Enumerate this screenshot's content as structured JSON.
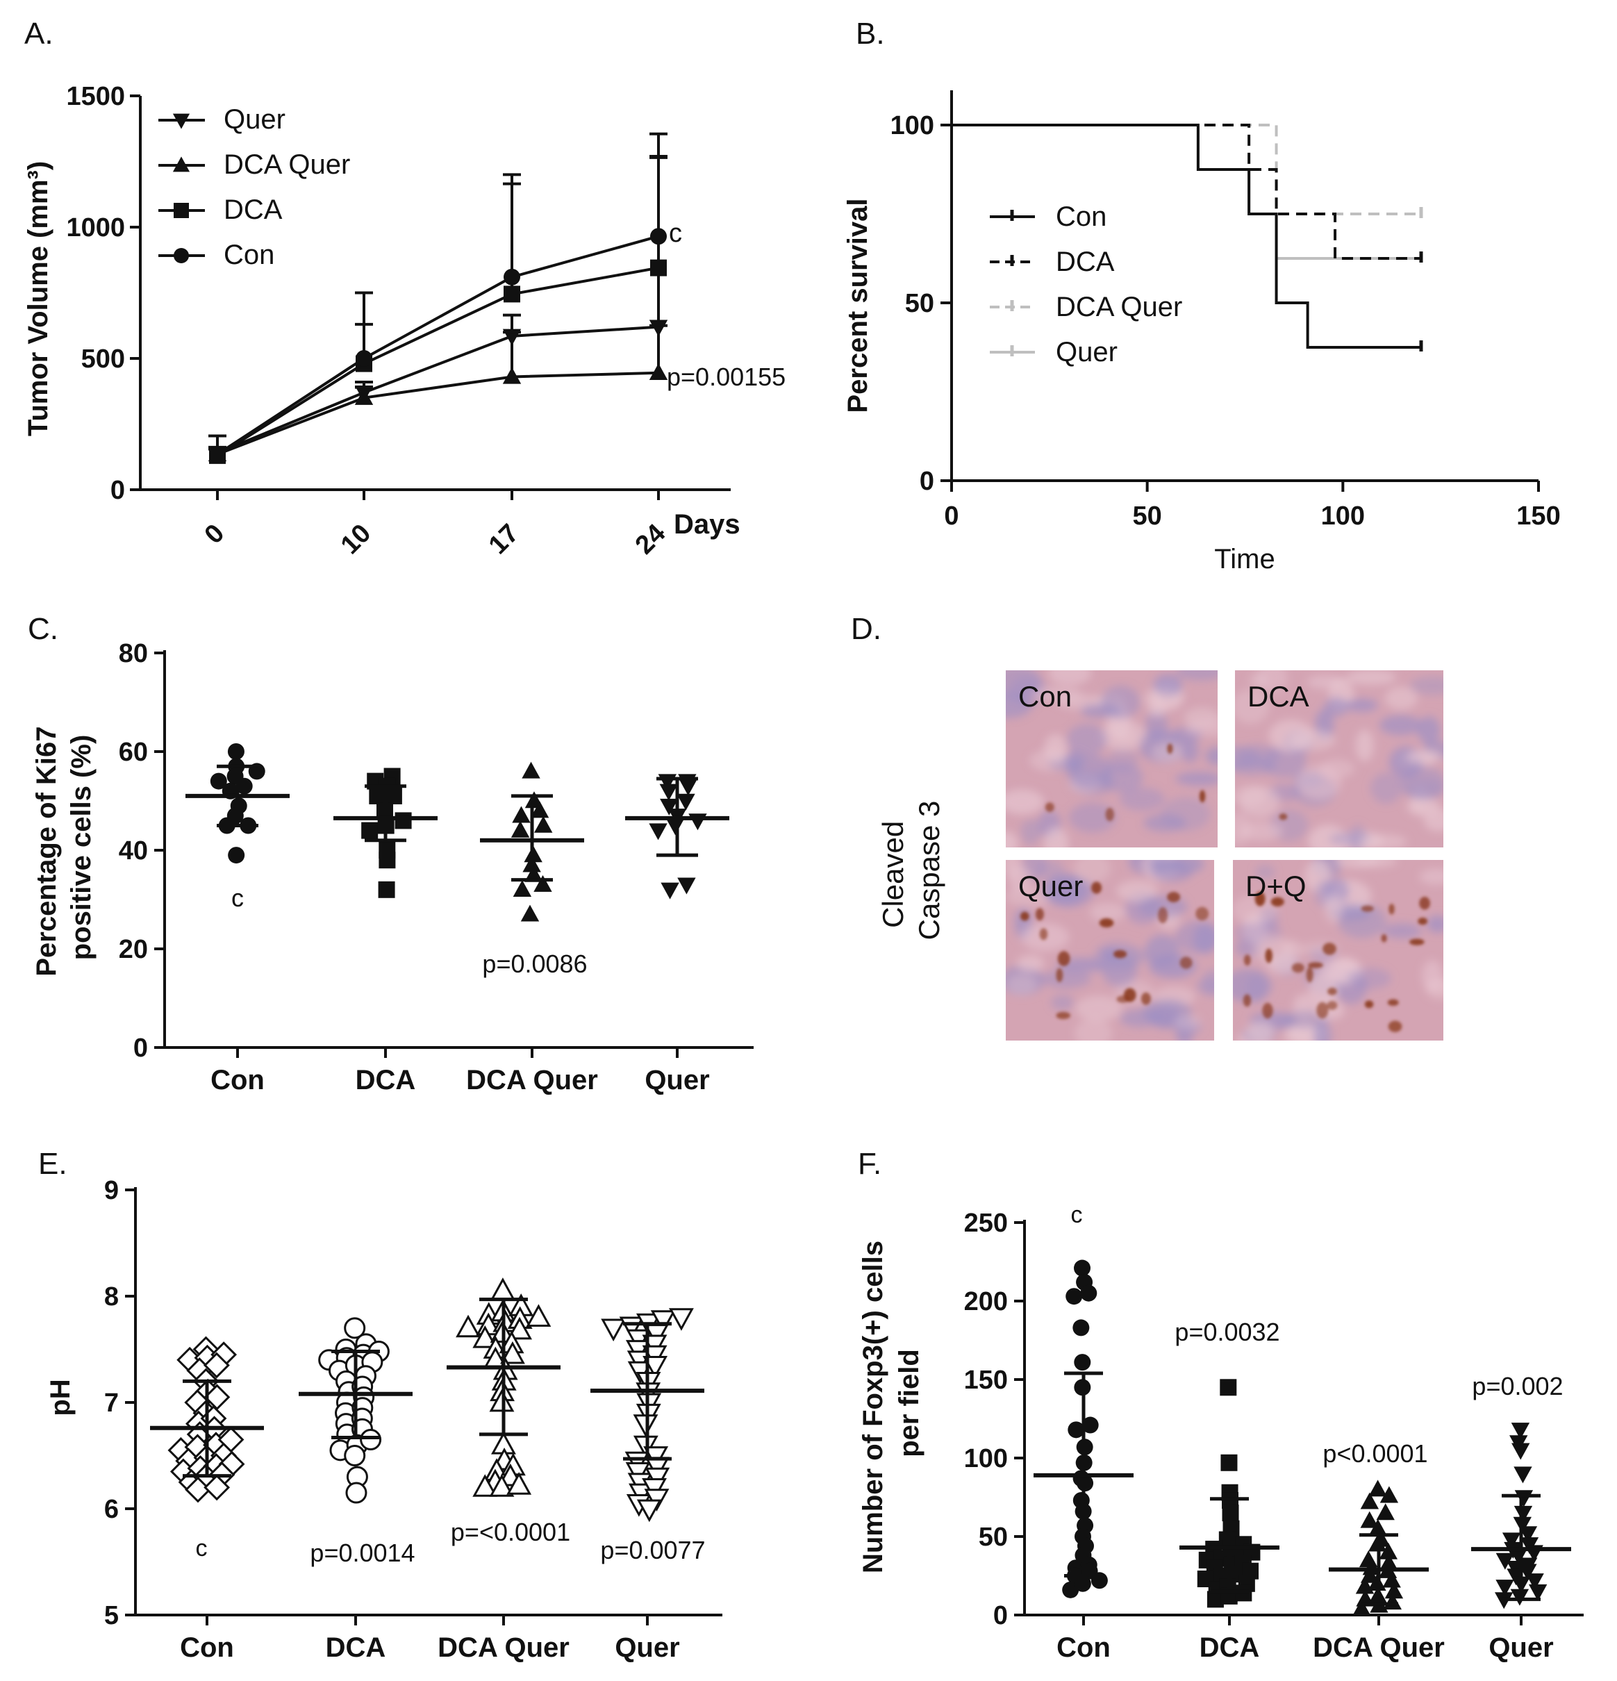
{
  "figure": {
    "panel_labels": [
      "A.",
      "B.",
      "C.",
      "D.",
      "E.",
      "F."
    ]
  },
  "chart_data": [
    {
      "id": "A",
      "type": "line",
      "ylabel": "Tumor Volume (mm³)",
      "xlabel": "Days",
      "categories": [
        "0",
        "10",
        "17",
        "24"
      ],
      "ylim": [
        0,
        1500
      ],
      "yticks": [
        0,
        500,
        1000,
        1500
      ],
      "legend": [
        "Quer",
        "DCA Quer",
        "DCA",
        "Con"
      ],
      "series": [
        {
          "name": "Quer",
          "marker": "triangle-down",
          "values": [
            140,
            370,
            585,
            620
          ],
          "err": [
            20,
            40,
            80,
            650
          ]
        },
        {
          "name": "DCA Quer",
          "marker": "triangle-up",
          "values": [
            135,
            350,
            430,
            445
          ],
          "err": [
            20,
            40,
            170,
            180
          ]
        },
        {
          "name": "DCA",
          "marker": "square",
          "values": [
            130,
            480,
            745,
            845
          ],
          "err": [
            25,
            150,
            420,
            420
          ]
        },
        {
          "name": "Con",
          "marker": "circle",
          "values": [
            135,
            500,
            810,
            965
          ],
          "err": [
            70,
            250,
            390,
            390
          ]
        }
      ],
      "annotations": [
        "c",
        "p=0.00155"
      ]
    },
    {
      "id": "B",
      "type": "line",
      "subtype": "survival",
      "ylabel": "Percent survival",
      "xlabel": "Time",
      "xlim": [
        0,
        150
      ],
      "ylim": [
        0,
        110
      ],
      "xticks": [
        0,
        50,
        100,
        150
      ],
      "yticks": [
        0,
        50,
        100
      ],
      "legend": [
        "Con",
        "DCA",
        "DCA Quer",
        "Quer"
      ],
      "series": [
        {
          "name": "Con",
          "style": "solid-black",
          "steps": [
            [
              0,
              100
            ],
            [
              63,
              100
            ],
            [
              63,
              87.5
            ],
            [
              76,
              87.5
            ],
            [
              76,
              75
            ],
            [
              83,
              75
            ],
            [
              83,
              50
            ],
            [
              91,
              50
            ],
            [
              91,
              37.5
            ],
            [
              120,
              37.5
            ]
          ]
        },
        {
          "name": "DCA",
          "style": "dashed-black",
          "steps": [
            [
              0,
              100
            ],
            [
              76,
              100
            ],
            [
              76,
              87.5
            ],
            [
              83,
              87.5
            ],
            [
              83,
              75
            ],
            [
              98,
              75
            ],
            [
              98,
              62.5
            ],
            [
              120,
              62.5
            ]
          ]
        },
        {
          "name": "DCA Quer",
          "style": "dashed-gray",
          "steps": [
            [
              0,
              100
            ],
            [
              83,
              100
            ],
            [
              83,
              75
            ],
            [
              120,
              75
            ]
          ]
        },
        {
          "name": "Quer",
          "style": "solid-gray",
          "steps": [
            [
              0,
              100
            ],
            [
              63,
              100
            ],
            [
              63,
              87.5
            ],
            [
              76,
              87.5
            ],
            [
              76,
              75
            ],
            [
              83,
              75
            ],
            [
              83,
              62.5
            ],
            [
              120,
              62.5
            ]
          ]
        }
      ]
    },
    {
      "id": "C",
      "type": "scatter",
      "ylabel": "Percentage of Ki67 positive cells (%)",
      "categories": [
        "Con",
        "DCA",
        "DCA Quer",
        "Quer"
      ],
      "ylim": [
        0,
        80
      ],
      "yticks": [
        0,
        20,
        40,
        60,
        80
      ],
      "groups": [
        {
          "name": "Con",
          "marker": "circle",
          "mean": 51,
          "sd_low": 45,
          "sd_high": 57,
          "points": [
            60,
            57,
            56,
            55,
            54,
            53,
            52,
            49,
            47,
            45,
            45,
            39
          ]
        },
        {
          "name": "DCA",
          "marker": "square",
          "mean": 46.5,
          "sd_low": 42,
          "sd_high": 53,
          "points": [
            55,
            54,
            53,
            51,
            51,
            48,
            46,
            45,
            44,
            40,
            38,
            32
          ]
        },
        {
          "name": "DCA Quer",
          "marker": "triangle-up",
          "mean": 42,
          "sd_low": 34,
          "sd_high": 51,
          "points": [
            56,
            50,
            48,
            47,
            45,
            44,
            39,
            37,
            35,
            33,
            32,
            27
          ]
        },
        {
          "name": "Quer",
          "marker": "triangle-down",
          "mean": 46.5,
          "sd_low": 39,
          "sd_high": 54.5,
          "points": [
            54,
            54,
            53,
            52,
            50,
            49,
            47,
            46,
            45,
            44,
            33,
            32
          ]
        }
      ],
      "annotations": [
        "c",
        "p=0.0086"
      ]
    },
    {
      "id": "E",
      "type": "scatter",
      "ylabel": "pH",
      "categories": [
        "Con",
        "DCA",
        "DCA Quer",
        "Quer"
      ],
      "ylim": [
        5,
        9
      ],
      "yticks": [
        5,
        6,
        7,
        8,
        9
      ],
      "groups": [
        {
          "name": "Con",
          "marker": "diamond-open",
          "mean": 6.76,
          "sd_low": 6.31,
          "sd_high": 7.2,
          "points": [
            7.5,
            7.45,
            7.42,
            7.4,
            7.35,
            7.3,
            7.2,
            7.1,
            7.05,
            7.0,
            6.9,
            6.85,
            6.8,
            6.75,
            6.7,
            6.65,
            6.6,
            6.58,
            6.55,
            6.5,
            6.48,
            6.45,
            6.42,
            6.4,
            6.38,
            6.35,
            6.32,
            6.3,
            6.25,
            6.2,
            6.18
          ]
        },
        {
          "name": "DCA",
          "marker": "circle-open",
          "mean": 7.08,
          "sd_low": 6.67,
          "sd_high": 7.48,
          "points": [
            7.7,
            7.55,
            7.5,
            7.48,
            7.45,
            7.42,
            7.4,
            7.38,
            7.35,
            7.3,
            7.25,
            7.2,
            7.15,
            7.1,
            7.05,
            7.0,
            6.95,
            6.9,
            6.85,
            6.8,
            6.75,
            6.7,
            6.65,
            6.6,
            6.55,
            6.5,
            6.3,
            6.15
          ]
        },
        {
          "name": "DCA Quer",
          "marker": "triangle-up-open",
          "mean": 7.33,
          "sd_low": 6.7,
          "sd_high": 7.97,
          "points": [
            8.05,
            7.9,
            7.85,
            7.82,
            7.8,
            7.78,
            7.75,
            7.72,
            7.7,
            7.68,
            7.65,
            7.6,
            7.55,
            7.5,
            7.45,
            7.4,
            7.3,
            7.2,
            7.1,
            7.0,
            6.6,
            6.45,
            6.4,
            6.35,
            6.3,
            6.25,
            6.22,
            6.2,
            6.2
          ]
        },
        {
          "name": "Quer",
          "marker": "triangle-down-open",
          "mean": 7.11,
          "sd_low": 6.47,
          "sd_high": 7.74,
          "points": [
            7.8,
            7.78,
            7.75,
            7.72,
            7.7,
            7.65,
            7.6,
            7.55,
            7.5,
            7.45,
            7.4,
            7.35,
            7.3,
            7.2,
            7.1,
            7.0,
            6.9,
            6.8,
            6.6,
            6.5,
            6.45,
            6.4,
            6.35,
            6.3,
            6.25,
            6.2,
            6.15,
            6.1,
            6.05,
            6.0
          ]
        }
      ],
      "annotations": [
        "c",
        "p=0.0014",
        "p=<0.0001",
        "p=0.0077"
      ]
    },
    {
      "id": "F",
      "type": "scatter",
      "ylabel": "Number of Foxp3(+) cells per field",
      "categories": [
        "Con",
        "DCA",
        "DCA Quer",
        "Quer"
      ],
      "ylim": [
        0,
        250
      ],
      "yticks": [
        0,
        50,
        100,
        150,
        200,
        250
      ],
      "groups": [
        {
          "name": "Con",
          "marker": "circle",
          "mean": 89,
          "sd_low": 25,
          "sd_high": 154,
          "points": [
            221,
            212,
            205,
            203,
            183,
            161,
            145,
            121,
            118,
            107,
            97,
            87,
            84,
            73,
            66,
            57,
            50,
            44,
            38,
            32,
            30,
            28,
            25,
            22,
            20,
            16
          ]
        },
        {
          "name": "DCA",
          "marker": "square",
          "mean": 43,
          "sd_low": 15,
          "sd_high": 74,
          "points": [
            145,
            97,
            78,
            73,
            65,
            55,
            48,
            45,
            43,
            42,
            40,
            38,
            36,
            35,
            33,
            32,
            30,
            28,
            26,
            25,
            23,
            20,
            18,
            16,
            14,
            12,
            10
          ]
        },
        {
          "name": "DCA Quer",
          "marker": "triangle-up",
          "mean": 29,
          "sd_low": 7,
          "sd_high": 51,
          "points": [
            80,
            76,
            72,
            65,
            60,
            55,
            48,
            45,
            40,
            35,
            33,
            30,
            28,
            25,
            22,
            20,
            18,
            15,
            12,
            10,
            8,
            6,
            4
          ]
        },
        {
          "name": "Quer",
          "marker": "triangle-down",
          "mean": 42,
          "sd_low": 10,
          "sd_high": 76,
          "points": [
            118,
            110,
            105,
            90,
            75,
            65,
            58,
            52,
            48,
            45,
            42,
            40,
            38,
            35,
            32,
            30,
            28,
            25,
            22,
            20,
            18,
            15,
            12,
            10
          ]
        }
      ],
      "annotations": [
        "c",
        "p=0.0032",
        "p<0.0001",
        "p=0.002"
      ]
    }
  ],
  "micrographs": {
    "side_label": [
      "Cleaved",
      "Caspase 3"
    ],
    "tiles": [
      {
        "label": "Con",
        "stain_spots": 4
      },
      {
        "label": "DCA",
        "stain_spots": 1
      },
      {
        "label": "Quer",
        "stain_spots": 16
      },
      {
        "label": "D+Q",
        "stain_spots": 22
      }
    ],
    "colors": {
      "tissue": "#d4a4b3",
      "nuclei": "#9d8fc4",
      "stain": "#8b3a1e"
    }
  },
  "colors": {
    "ink": "#111111",
    "gray": "#bfbfbf",
    "background": "#ffffff"
  }
}
